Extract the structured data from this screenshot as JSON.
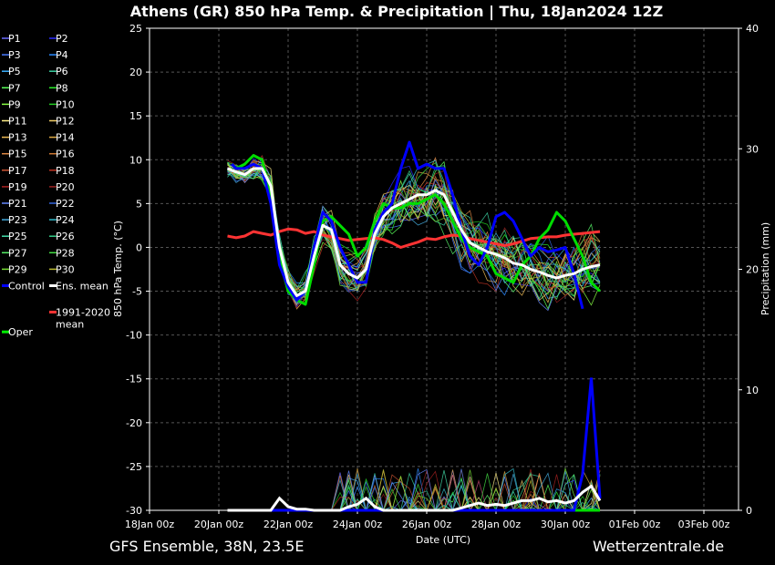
{
  "chart_data": {
    "type": "line",
    "title": "Athens  (GR)  850 hPa Temp. & Precipitation | Thu, 18Jan2024 12Z",
    "xlabel": "Date (UTC)",
    "ylabel": "850 hPa Temp. (°C)",
    "y2label": "Precipitation (mm)",
    "xlim": [
      "18Jan00z",
      "04Feb00z"
    ],
    "x_ticks": [
      "18Jan 00z",
      "20Jan 00z",
      "22Jan 00z",
      "24Jan 00z",
      "26Jan 00z",
      "28Jan 00z",
      "30Jan 00z",
      "01Feb 00z",
      "03Feb 00z"
    ],
    "ylim": [
      -30,
      25
    ],
    "y_ticks": [
      25,
      20,
      15,
      10,
      5,
      0,
      -5,
      -10,
      -15,
      -20,
      -25,
      -30
    ],
    "y2lim": [
      0,
      40
    ],
    "y2_ticks": [
      40,
      30,
      20,
      10,
      0
    ],
    "grid": true,
    "legend_position": "left",
    "legend": [
      {
        "label": "P1",
        "color": "#6a6aff"
      },
      {
        "label": "P2",
        "color": "#2a2aff"
      },
      {
        "label": "P3",
        "color": "#4a7aff"
      },
      {
        "label": "P4",
        "color": "#2a8aff"
      },
      {
        "label": "P5",
        "color": "#3ab0ff"
      },
      {
        "label": "P6",
        "color": "#3acfa0"
      },
      {
        "label": "P7",
        "color": "#5aff5a"
      },
      {
        "label": "P8",
        "color": "#2aee2a"
      },
      {
        "label": "P9",
        "color": "#88ff44"
      },
      {
        "label": "P10",
        "color": "#22cc22"
      },
      {
        "label": "P11",
        "color": "#ffee88"
      },
      {
        "label": "P12",
        "color": "#eecc66"
      },
      {
        "label": "P13",
        "color": "#eebb55"
      },
      {
        "label": "P14",
        "color": "#ddaa44"
      },
      {
        "label": "P15",
        "color": "#dd8844"
      },
      {
        "label": "P16",
        "color": "#cc7733"
      },
      {
        "label": "P17",
        "color": "#cc5533"
      },
      {
        "label": "P18",
        "color": "#bb3322"
      },
      {
        "label": "P19",
        "color": "#aa2222"
      },
      {
        "label": "P20",
        "color": "#992222"
      },
      {
        "label": "P21",
        "color": "#6688ff"
      },
      {
        "label": "P22",
        "color": "#3366dd"
      },
      {
        "label": "P23",
        "color": "#44aadd"
      },
      {
        "label": "P24",
        "color": "#33bbcc"
      },
      {
        "label": "P25",
        "color": "#44ddaa"
      },
      {
        "label": "P26",
        "color": "#33cc88"
      },
      {
        "label": "P27",
        "color": "#55ee66"
      },
      {
        "label": "P28",
        "color": "#44dd44"
      },
      {
        "label": "P29",
        "color": "#77dd33"
      },
      {
        "label": "P30",
        "color": "#bbbb33"
      },
      {
        "label": "Control",
        "color": "#0000ff"
      },
      {
        "label": "Ens. mean",
        "color": "#ffffff"
      },
      {
        "label": "1991-2020\nmean",
        "color": "#ff3333"
      },
      {
        "label": "Oper",
        "color": "#00ee00"
      }
    ],
    "temp_series": {
      "Control": [
        [
          9.5,
          9.5
        ],
        [
          10,
          9
        ],
        [
          11,
          9
        ],
        [
          12,
          9.5
        ],
        [
          13,
          9
        ],
        [
          14,
          5
        ],
        [
          15,
          -2
        ],
        [
          16,
          -4.5
        ],
        [
          17,
          -6
        ],
        [
          18,
          -5
        ],
        [
          19,
          0
        ],
        [
          20,
          4
        ],
        [
          21,
          3
        ],
        [
          22,
          0
        ],
        [
          23,
          -2
        ],
        [
          24,
          -4
        ],
        [
          25,
          -4
        ],
        [
          26,
          2
        ],
        [
          27,
          4
        ],
        [
          28,
          5
        ],
        [
          29,
          9
        ],
        [
          30,
          12
        ],
        [
          31,
          9
        ],
        [
          32,
          9.5
        ],
        [
          33,
          9
        ],
        [
          34,
          9
        ],
        [
          35,
          6
        ],
        [
          36,
          2
        ],
        [
          37,
          -1
        ],
        [
          38,
          -2
        ],
        [
          39,
          0
        ],
        [
          40,
          3.5
        ],
        [
          41,
          4
        ],
        [
          42,
          3
        ],
        [
          43,
          1
        ],
        [
          44,
          -1
        ],
        [
          45,
          0
        ],
        [
          46,
          -0.5
        ],
        [
          47,
          -0.3
        ],
        [
          48,
          0
        ],
        [
          49,
          -3
        ],
        [
          50,
          -7
        ]
      ],
      "Ens. mean": [
        [
          9,
          9
        ],
        [
          10,
          8.6
        ],
        [
          11,
          8.3
        ],
        [
          12,
          9
        ],
        [
          13,
          9
        ],
        [
          14,
          7
        ],
        [
          15,
          0
        ],
        [
          16,
          -4
        ],
        [
          17,
          -5.5
        ],
        [
          18,
          -5
        ],
        [
          19,
          -1
        ],
        [
          20,
          2.5
        ],
        [
          21,
          2
        ],
        [
          22,
          -2
        ],
        [
          23,
          -3
        ],
        [
          24,
          -3.5
        ],
        [
          25,
          -2.5
        ],
        [
          26,
          1.5
        ],
        [
          27,
          3.5
        ],
        [
          28,
          4.5
        ],
        [
          29,
          5
        ],
        [
          30,
          5.5
        ],
        [
          31,
          6
        ],
        [
          32,
          6
        ],
        [
          33,
          6.5
        ],
        [
          34,
          6
        ],
        [
          35,
          4
        ],
        [
          36,
          2
        ],
        [
          37,
          0.5
        ],
        [
          38,
          0
        ],
        [
          39,
          -0.5
        ],
        [
          40,
          -0.8
        ],
        [
          41,
          -1.2
        ],
        [
          42,
          -1.8
        ],
        [
          43,
          -2
        ],
        [
          44,
          -2.5
        ],
        [
          45,
          -2.8
        ],
        [
          46,
          -3.2
        ],
        [
          47,
          -3.5
        ],
        [
          48,
          -3.2
        ],
        [
          49,
          -3
        ],
        [
          50,
          -2.5
        ],
        [
          51,
          -2.2
        ],
        [
          52,
          -2
        ]
      ],
      "Oper": [
        [
          9.5,
          9.5
        ],
        [
          10,
          9
        ],
        [
          11,
          9.5
        ],
        [
          12,
          10.5
        ],
        [
          13,
          10
        ],
        [
          14,
          6
        ],
        [
          15,
          -1
        ],
        [
          16,
          -5
        ],
        [
          17,
          -6
        ],
        [
          18,
          -6.5
        ],
        [
          19,
          -2
        ],
        [
          20,
          3
        ],
        [
          21,
          3.5
        ],
        [
          22,
          2.5
        ],
        [
          23,
          1.5
        ],
        [
          24,
          -1
        ],
        [
          25,
          0
        ],
        [
          26,
          3
        ],
        [
          27,
          5
        ],
        [
          28,
          4.5
        ],
        [
          29,
          4.5
        ],
        [
          30,
          5
        ],
        [
          31,
          5
        ],
        [
          32,
          5.5
        ],
        [
          33,
          6
        ],
        [
          34,
          5
        ],
        [
          35,
          3
        ],
        [
          36,
          1
        ],
        [
          37,
          0
        ],
        [
          38,
          -0.5
        ],
        [
          39,
          -1
        ],
        [
          40,
          -3
        ],
        [
          41,
          -3.5
        ],
        [
          42,
          -4
        ],
        [
          43,
          -2
        ],
        [
          44,
          -1
        ],
        [
          45,
          1
        ],
        [
          46,
          2
        ],
        [
          47,
          4
        ],
        [
          48,
          3
        ],
        [
          49,
          1
        ],
        [
          50,
          -1
        ],
        [
          51,
          -4
        ],
        [
          52,
          -5
        ]
      ],
      "1991-2020 mean": [
        [
          9,
          1.3
        ],
        [
          10,
          1.1
        ],
        [
          11,
          1.3
        ],
        [
          12,
          1.8
        ],
        [
          13,
          1.6
        ],
        [
          14,
          1.4
        ],
        [
          15,
          1.8
        ],
        [
          16,
          2.1
        ],
        [
          17,
          2
        ],
        [
          18,
          1.6
        ],
        [
          19,
          1.8
        ],
        [
          20,
          1.4
        ],
        [
          21,
          1.2
        ],
        [
          22,
          1
        ],
        [
          23,
          0.8
        ],
        [
          24,
          0.9
        ],
        [
          25,
          1
        ],
        [
          26,
          1.1
        ],
        [
          27,
          0.9
        ],
        [
          28,
          0.5
        ],
        [
          29,
          0
        ],
        [
          30,
          0.3
        ],
        [
          31,
          0.6
        ],
        [
          32,
          1
        ],
        [
          33,
          0.9
        ],
        [
          34,
          1.2
        ],
        [
          35,
          1.4
        ],
        [
          36,
          1.3
        ],
        [
          37,
          1
        ],
        [
          38,
          0.8
        ],
        [
          39,
          0.6
        ],
        [
          40,
          0.4
        ],
        [
          41,
          0.2
        ],
        [
          42,
          0.4
        ],
        [
          43,
          0.7
        ],
        [
          44,
          1
        ],
        [
          45,
          1.1
        ],
        [
          46,
          1.2
        ],
        [
          47,
          1.2
        ],
        [
          48,
          1.4
        ],
        [
          49,
          1.5
        ],
        [
          50,
          1.6
        ],
        [
          51,
          1.7
        ],
        [
          52,
          1.8
        ]
      ]
    },
    "precip_series": {
      "Ens. mean": [
        [
          9,
          0
        ],
        [
          13,
          0
        ],
        [
          14,
          0
        ],
        [
          15,
          1
        ],
        [
          16,
          0.3
        ],
        [
          17,
          0.1
        ],
        [
          18,
          0.1
        ],
        [
          19,
          0
        ],
        [
          22,
          0
        ],
        [
          23,
          0.3
        ],
        [
          24,
          0.5
        ],
        [
          25,
          1
        ],
        [
          26,
          0.3
        ],
        [
          27,
          0
        ],
        [
          34,
          0
        ],
        [
          35,
          0
        ],
        [
          36,
          0.2
        ],
        [
          37,
          0.4
        ],
        [
          38,
          0.6
        ],
        [
          39,
          0.4
        ],
        [
          40,
          0.5
        ],
        [
          41,
          0.4
        ],
        [
          42,
          0.6
        ],
        [
          43,
          0.8
        ],
        [
          44,
          0.8
        ],
        [
          45,
          1
        ],
        [
          46,
          0.7
        ],
        [
          47,
          0.8
        ],
        [
          48,
          0.6
        ],
        [
          49,
          0.8
        ],
        [
          50,
          1.5
        ],
        [
          51,
          2
        ],
        [
          52,
          0.8
        ]
      ],
      "Control": [
        [
          9,
          0
        ],
        [
          49,
          0
        ],
        [
          50,
          3
        ],
        [
          51,
          11
        ],
        [
          52,
          1
        ]
      ],
      "Oper": [
        [
          9,
          0
        ],
        [
          52,
          0
        ]
      ]
    }
  },
  "footer": {
    "left": "GFS Ensemble, 38N, 23.5E",
    "right": "Wetterzentrale.de"
  }
}
